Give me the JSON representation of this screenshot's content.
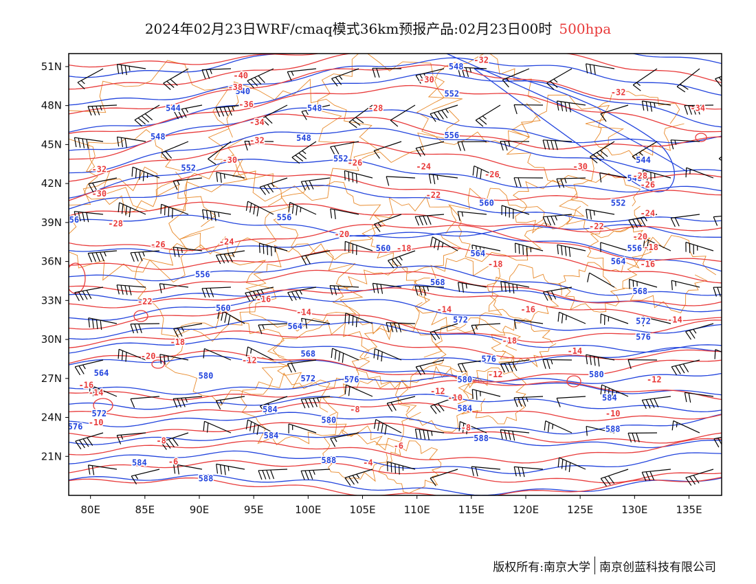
{
  "title": {
    "main": "2024年02月23日WRF/cmaq模式36km预报产品:02月23日00时",
    "level": "500hpa"
  },
  "footer": {
    "copyright": "版权所有:南京大学",
    "company": "南京创蓝科技有限公司"
  },
  "colors": {
    "temperature": "#e83a3a",
    "height": "#2244dd",
    "boundary": "#e8892a",
    "wind": "#000000"
  },
  "axes": {
    "lat_labels": [
      "51N",
      "48N",
      "45N",
      "42N",
      "39N",
      "36N",
      "33N",
      "30N",
      "27N",
      "24N",
      "21N"
    ],
    "lon_labels": [
      "80E",
      "85E",
      "90E",
      "95E",
      "100E",
      "105E",
      "110E",
      "115E",
      "120E",
      "125E",
      "130E",
      "135E"
    ]
  },
  "map_data": {
    "lon_range": [
      78,
      138
    ],
    "lat_range": [
      18,
      52
    ],
    "temperature_labels": [
      {
        "v": "-40",
        "lon": 93.8,
        "lat": 50.3
      },
      {
        "v": "-38",
        "lon": 93.3,
        "lat": 49.4
      },
      {
        "v": "-36",
        "lon": 94.3,
        "lat": 48.1
      },
      {
        "v": "-34",
        "lon": 95.3,
        "lat": 46.7
      },
      {
        "v": "-32",
        "lon": 95.3,
        "lat": 45.3
      },
      {
        "v": "-30",
        "lon": 92.8,
        "lat": 43.8
      },
      {
        "v": "-28",
        "lon": 106.2,
        "lat": 47.8
      },
      {
        "v": "-26",
        "lon": 104.3,
        "lat": 43.6
      },
      {
        "v": "-24",
        "lon": 110.6,
        "lat": 43.3
      },
      {
        "v": "-22",
        "lon": 111.5,
        "lat": 41.1
      },
      {
        "v": "-20",
        "lon": 103.1,
        "lat": 38.1
      },
      {
        "v": "-18",
        "lon": 108.8,
        "lat": 37.0
      },
      {
        "v": "-16",
        "lon": 95.9,
        "lat": 33.1
      },
      {
        "v": "-14",
        "lon": 99.6,
        "lat": 32.1
      },
      {
        "v": "-12",
        "lon": 94.6,
        "lat": 28.4
      },
      {
        "v": "-10",
        "lon": 113.5,
        "lat": 25.5
      },
      {
        "v": "-8",
        "lon": 104.3,
        "lat": 24.6
      },
      {
        "v": "-6",
        "lon": 108.3,
        "lat": 21.8
      },
      {
        "v": "-4",
        "lon": 105.5,
        "lat": 20.5
      },
      {
        "v": "-30",
        "lon": 110.9,
        "lat": 50.0
      },
      {
        "v": "-32",
        "lon": 115.9,
        "lat": 51.5
      },
      {
        "v": "-32",
        "lon": 128.5,
        "lat": 49.0
      },
      {
        "v": "-34",
        "lon": 135.8,
        "lat": 47.8
      },
      {
        "v": "-30",
        "lon": 125.0,
        "lat": 43.3
      },
      {
        "v": "-28",
        "lon": 130.5,
        "lat": 42.6
      },
      {
        "v": "-26",
        "lon": 116.9,
        "lat": 42.7
      },
      {
        "v": "-26",
        "lon": 131.2,
        "lat": 41.9
      },
      {
        "v": "-24",
        "lon": 131.2,
        "lat": 39.7
      },
      {
        "v": "-22",
        "lon": 126.5,
        "lat": 38.7
      },
      {
        "v": "-20",
        "lon": 130.5,
        "lat": 37.9
      },
      {
        "v": "-18",
        "lon": 117.2,
        "lat": 35.8
      },
      {
        "v": "-18",
        "lon": 131.5,
        "lat": 37.1
      },
      {
        "v": "-16",
        "lon": 131.2,
        "lat": 35.8
      },
      {
        "v": "-16",
        "lon": 120.2,
        "lat": 32.3
      },
      {
        "v": "-14",
        "lon": 112.5,
        "lat": 32.3
      },
      {
        "v": "-14",
        "lon": 133.7,
        "lat": 31.5
      },
      {
        "v": "-12",
        "lon": 117.2,
        "lat": 27.3
      },
      {
        "v": "-12",
        "lon": 131.8,
        "lat": 26.9
      },
      {
        "v": "-14",
        "lon": 124.5,
        "lat": 29.1
      },
      {
        "v": "-16",
        "lon": 79.6,
        "lat": 26.5
      },
      {
        "v": "-14",
        "lon": 80.5,
        "lat": 25.9
      },
      {
        "v": "-10",
        "lon": 80.5,
        "lat": 23.6
      },
      {
        "v": "-8",
        "lon": 114.5,
        "lat": 23.2
      },
      {
        "v": "-6",
        "lon": 87.6,
        "lat": 20.6
      },
      {
        "v": "-18",
        "lon": 88.0,
        "lat": 29.8
      },
      {
        "v": "-20",
        "lon": 85.3,
        "lat": 28.7
      },
      {
        "v": "-22",
        "lon": 85.0,
        "lat": 32.9
      },
      {
        "v": "-24",
        "lon": 92.5,
        "lat": 37.5
      },
      {
        "v": "-26",
        "lon": 86.2,
        "lat": 37.3
      },
      {
        "v": "-28",
        "lon": 82.3,
        "lat": 38.9
      },
      {
        "v": "-30",
        "lon": 80.8,
        "lat": 41.2
      },
      {
        "v": "-32",
        "lon": 80.8,
        "lat": 43.1
      },
      {
        "v": "-12",
        "lon": 111.9,
        "lat": 26.0
      },
      {
        "v": "-10",
        "lon": 128.0,
        "lat": 24.3
      },
      {
        "v": "-18",
        "lon": 118.5,
        "lat": 29.9
      },
      {
        "v": "-8",
        "lon": 86.5,
        "lat": 22.2
      }
    ],
    "height_labels": [
      {
        "v": "540",
        "lon": 94.0,
        "lat": 49.1
      },
      {
        "v": "544",
        "lon": 87.6,
        "lat": 47.8
      },
      {
        "v": "548",
        "lon": 86.2,
        "lat": 45.6
      },
      {
        "v": "552",
        "lon": 89.0,
        "lat": 43.2
      },
      {
        "v": "556",
        "lon": 97.8,
        "lat": 39.4
      },
      {
        "v": "556",
        "lon": 90.3,
        "lat": 35.0
      },
      {
        "v": "560",
        "lon": 92.2,
        "lat": 32.4
      },
      {
        "v": "564",
        "lon": 98.8,
        "lat": 31.0
      },
      {
        "v": "568",
        "lon": 100.0,
        "lat": 28.9
      },
      {
        "v": "572",
        "lon": 100.0,
        "lat": 27.0
      },
      {
        "v": "576",
        "lon": 104.0,
        "lat": 26.9
      },
      {
        "v": "560",
        "lon": 106.9,
        "lat": 37.0
      },
      {
        "v": "580",
        "lon": 90.6,
        "lat": 27.2
      },
      {
        "v": "584",
        "lon": 96.5,
        "lat": 24.6
      },
      {
        "v": "580",
        "lon": 101.9,
        "lat": 23.8
      },
      {
        "v": "584",
        "lon": 96.6,
        "lat": 22.6
      },
      {
        "v": "588",
        "lon": 101.9,
        "lat": 20.7
      },
      {
        "v": "584",
        "lon": 84.5,
        "lat": 20.5
      },
      {
        "v": "588",
        "lon": 90.6,
        "lat": 19.3
      },
      {
        "v": "572",
        "lon": 80.8,
        "lat": 24.3
      },
      {
        "v": "576",
        "lon": 78.6,
        "lat": 23.3
      },
      {
        "v": "564",
        "lon": 81.0,
        "lat": 27.4
      },
      {
        "v": "548",
        "lon": 100.6,
        "lat": 47.8
      },
      {
        "v": "548",
        "lon": 99.6,
        "lat": 45.5
      },
      {
        "v": "552",
        "lon": 103.0,
        "lat": 43.9
      },
      {
        "v": "548",
        "lon": 113.6,
        "lat": 51.0
      },
      {
        "v": "552",
        "lon": 113.2,
        "lat": 48.9
      },
      {
        "v": "556",
        "lon": 113.2,
        "lat": 45.7
      },
      {
        "v": "560",
        "lon": 116.4,
        "lat": 40.5
      },
      {
        "v": "564",
        "lon": 115.6,
        "lat": 36.6
      },
      {
        "v": "568",
        "lon": 111.9,
        "lat": 34.4
      },
      {
        "v": "572",
        "lon": 114.0,
        "lat": 31.5
      },
      {
        "v": "576",
        "lon": 116.6,
        "lat": 28.5
      },
      {
        "v": "580",
        "lon": 114.4,
        "lat": 26.9
      },
      {
        "v": "584",
        "lon": 114.4,
        "lat": 24.7
      },
      {
        "v": "588",
        "lon": 115.9,
        "lat": 22.4
      },
      {
        "v": "544",
        "lon": 130.8,
        "lat": 43.8
      },
      {
        "v": "548",
        "lon": 130.0,
        "lat": 42.4
      },
      {
        "v": "552",
        "lon": 128.5,
        "lat": 40.5
      },
      {
        "v": "556",
        "lon": 130.0,
        "lat": 37.0
      },
      {
        "v": "564",
        "lon": 128.5,
        "lat": 36.0
      },
      {
        "v": "568",
        "lon": 130.5,
        "lat": 33.7
      },
      {
        "v": "572",
        "lon": 130.8,
        "lat": 31.4
      },
      {
        "v": "576",
        "lon": 130.8,
        "lat": 30.2
      },
      {
        "v": "580",
        "lon": 126.5,
        "lat": 27.3
      },
      {
        "v": "584",
        "lon": 127.7,
        "lat": 25.5
      },
      {
        "v": "588",
        "lon": 128.0,
        "lat": 23.1
      },
      {
        "v": "56",
        "lon": 78.5,
        "lat": 39.2
      }
    ]
  }
}
